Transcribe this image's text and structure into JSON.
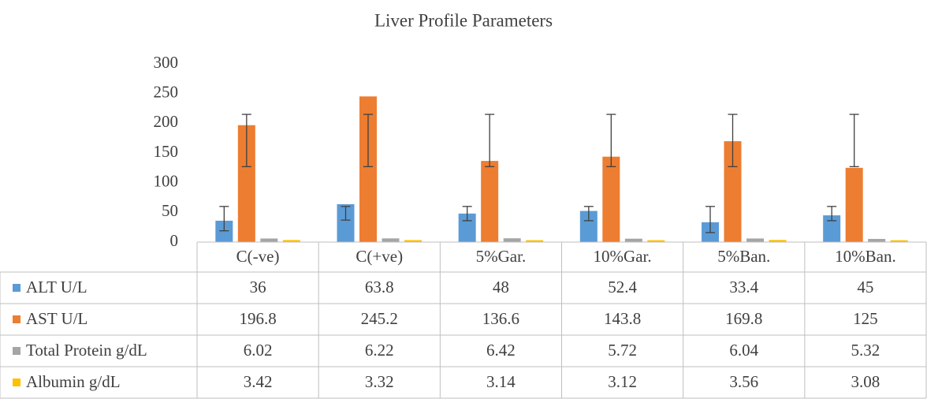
{
  "chart_data": {
    "type": "bar",
    "title": "Liver Profile Parameters",
    "categories": [
      "C(-ve)",
      "C(+ve)",
      "5%Gar.",
      "10%Gar.",
      "5%Ban.",
      "10%Ban."
    ],
    "series": [
      {
        "name": "ALT U/L",
        "color": "#5b9bd5",
        "values": [
          36,
          63.8,
          48,
          52.4,
          33.4,
          45
        ],
        "error_low": [
          19,
          37,
          36,
          36,
          16,
          36
        ],
        "error_high": [
          60,
          60,
          60,
          60,
          60,
          60
        ]
      },
      {
        "name": "AST U/L",
        "color": "#ed7d31",
        "values": [
          196.8,
          245.2,
          136.6,
          143.8,
          169.8,
          125
        ],
        "error_low": [
          127,
          127,
          127,
          127,
          127,
          127
        ],
        "error_high": [
          215,
          215,
          215,
          215,
          215,
          215
        ]
      },
      {
        "name": "Total Protein g/dL",
        "color": "#a5a5a5",
        "values": [
          6.02,
          6.22,
          6.42,
          5.72,
          6.04,
          5.32
        ]
      },
      {
        "name": "Albumin g/dL",
        "color": "#ffc000",
        "values": [
          3.42,
          3.32,
          3.14,
          3.12,
          3.56,
          3.08
        ]
      }
    ],
    "ylim": [
      0,
      300
    ],
    "yticks": [
      0,
      50,
      100,
      150,
      200,
      250,
      300
    ],
    "grid": false,
    "data_table": true
  }
}
